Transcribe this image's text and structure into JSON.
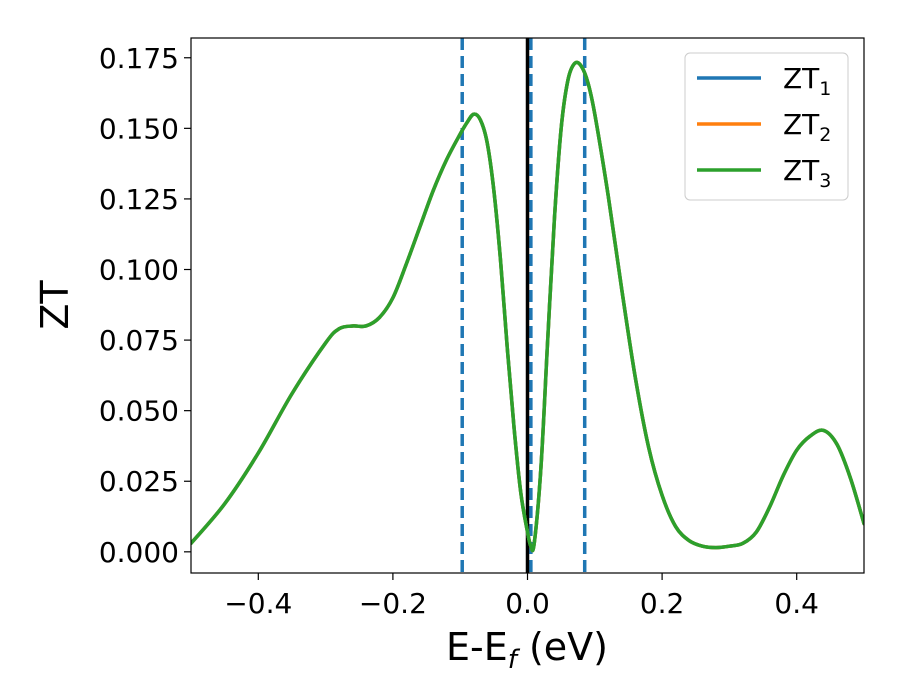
{
  "chart_data": {
    "type": "line",
    "title": "",
    "xlabel_main": "E-E",
    "xlabel_sub": "f",
    "xlabel_tail": " (eV)",
    "ylabel": "ZT",
    "xlim": [
      -0.5,
      0.5
    ],
    "ylim": [
      -0.0075,
      0.182
    ],
    "xticks": [
      -0.4,
      -0.2,
      0.0,
      0.2,
      0.4
    ],
    "xtick_labels": [
      "−0.4",
      "−0.2",
      "0.0",
      "0.2",
      "0.4"
    ],
    "yticks": [
      0.0,
      0.025,
      0.05,
      0.075,
      0.1,
      0.125,
      0.15,
      0.175
    ],
    "ytick_labels": [
      "0.000",
      "0.025",
      "0.050",
      "0.075",
      "0.100",
      "0.125",
      "0.150",
      "0.175"
    ],
    "grid": false,
    "legend_position": "top-right",
    "vlines": [
      {
        "x": -0.097,
        "style": "dashed",
        "color": "#1f77b4"
      },
      {
        "x": 0.005,
        "style": "dashed",
        "color": "#1f77b4"
      },
      {
        "x": 0.085,
        "style": "dashed",
        "color": "#1f77b4"
      },
      {
        "x": 0.0,
        "style": "solid",
        "color": "#000000"
      }
    ],
    "x": [
      -0.5,
      -0.45,
      -0.4,
      -0.35,
      -0.3,
      -0.28,
      -0.26,
      -0.24,
      -0.22,
      -0.2,
      -0.18,
      -0.16,
      -0.14,
      -0.12,
      -0.1,
      -0.09,
      -0.08,
      -0.07,
      -0.06,
      -0.05,
      -0.04,
      -0.03,
      -0.02,
      -0.01,
      0.0,
      0.005,
      0.01,
      0.02,
      0.03,
      0.04,
      0.05,
      0.06,
      0.07,
      0.08,
      0.09,
      0.1,
      0.12,
      0.14,
      0.16,
      0.18,
      0.2,
      0.22,
      0.24,
      0.26,
      0.28,
      0.3,
      0.32,
      0.34,
      0.36,
      0.38,
      0.4,
      0.42,
      0.44,
      0.46,
      0.48,
      0.5
    ],
    "series": [
      {
        "name_main": "ZT",
        "name_sub": "1",
        "color": "#1f77b4",
        "values": [
          0.003,
          0.017,
          0.035,
          0.056,
          0.074,
          0.079,
          0.08,
          0.08,
          0.083,
          0.09,
          0.102,
          0.115,
          0.128,
          0.139,
          0.148,
          0.152,
          0.155,
          0.153,
          0.145,
          0.128,
          0.103,
          0.072,
          0.044,
          0.021,
          0.007,
          0.002,
          0.003,
          0.03,
          0.075,
          0.118,
          0.15,
          0.167,
          0.173,
          0.172,
          0.166,
          0.155,
          0.126,
          0.093,
          0.062,
          0.037,
          0.02,
          0.009,
          0.004,
          0.002,
          0.0015,
          0.002,
          0.003,
          0.007,
          0.016,
          0.027,
          0.036,
          0.041,
          0.043,
          0.038,
          0.026,
          0.01
        ]
      },
      {
        "name_main": "ZT",
        "name_sub": "2",
        "color": "#ff7f0e",
        "values": [
          0.003,
          0.017,
          0.035,
          0.056,
          0.074,
          0.079,
          0.08,
          0.08,
          0.083,
          0.09,
          0.102,
          0.115,
          0.128,
          0.139,
          0.148,
          0.152,
          0.155,
          0.153,
          0.145,
          0.128,
          0.103,
          0.072,
          0.044,
          0.021,
          0.007,
          0.002,
          0.003,
          0.03,
          0.075,
          0.118,
          0.15,
          0.167,
          0.173,
          0.172,
          0.166,
          0.155,
          0.126,
          0.093,
          0.062,
          0.037,
          0.02,
          0.009,
          0.004,
          0.002,
          0.0015,
          0.002,
          0.003,
          0.007,
          0.016,
          0.027,
          0.036,
          0.041,
          0.043,
          0.038,
          0.026,
          0.01
        ]
      },
      {
        "name_main": "ZT",
        "name_sub": "3",
        "color": "#2ca02c",
        "values": [
          0.003,
          0.017,
          0.035,
          0.056,
          0.074,
          0.079,
          0.08,
          0.08,
          0.083,
          0.09,
          0.102,
          0.115,
          0.128,
          0.139,
          0.148,
          0.152,
          0.155,
          0.153,
          0.145,
          0.128,
          0.103,
          0.072,
          0.044,
          0.021,
          0.007,
          0.002,
          0.003,
          0.03,
          0.075,
          0.118,
          0.15,
          0.167,
          0.173,
          0.172,
          0.166,
          0.155,
          0.126,
          0.093,
          0.062,
          0.037,
          0.02,
          0.009,
          0.004,
          0.002,
          0.0015,
          0.002,
          0.003,
          0.007,
          0.016,
          0.027,
          0.036,
          0.041,
          0.043,
          0.038,
          0.026,
          0.01
        ]
      }
    ]
  }
}
